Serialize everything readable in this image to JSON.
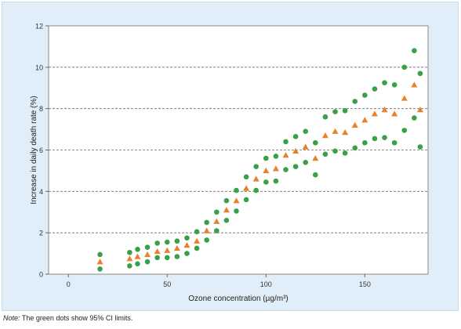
{
  "chart_data": {
    "type": "scatter",
    "title": "",
    "xlabel": "Ozone concentration (µg/m³)",
    "ylabel": "Increase in daily death rate (%)",
    "xlim": [
      -10,
      182
    ],
    "ylim": [
      0,
      12
    ],
    "xticks": [
      0,
      50,
      100,
      150
    ],
    "yticks": [
      0,
      2,
      4,
      6,
      8,
      10,
      12
    ],
    "grid": "horizontal dashed lines at y = 2, 4, 6, 8, 10",
    "series": [
      {
        "marker": "triangle",
        "color": "#e8822a",
        "points": [
          [
            16,
            0.6
          ],
          [
            31,
            0.75
          ],
          [
            35,
            0.85
          ],
          [
            40,
            0.95
          ],
          [
            45,
            1.1
          ],
          [
            50,
            1.15
          ],
          [
            55,
            1.25
          ],
          [
            60,
            1.4
          ],
          [
            65,
            1.6
          ],
          [
            70,
            2.1
          ],
          [
            75,
            2.55
          ],
          [
            80,
            3.1
          ],
          [
            85,
            3.55
          ],
          [
            90,
            4.15
          ],
          [
            95,
            4.6
          ],
          [
            100,
            5.0
          ],
          [
            105,
            5.1
          ],
          [
            110,
            5.75
          ],
          [
            115,
            5.95
          ],
          [
            120,
            6.15
          ],
          [
            125,
            5.6
          ],
          [
            130,
            6.7
          ],
          [
            135,
            6.9
          ],
          [
            140,
            6.85
          ],
          [
            145,
            7.2
          ],
          [
            150,
            7.45
          ],
          [
            155,
            7.75
          ],
          [
            160,
            7.95
          ],
          [
            165,
            7.75
          ],
          [
            170,
            8.5
          ],
          [
            175,
            9.15
          ],
          [
            178,
            7.95
          ]
        ]
      },
      {
        "marker": "circle",
        "color": "#3aa048",
        "points": [
          [
            16,
            0.95
          ],
          [
            31,
            1.05
          ],
          [
            35,
            1.2
          ],
          [
            40,
            1.3
          ],
          [
            45,
            1.5
          ],
          [
            50,
            1.55
          ],
          [
            55,
            1.6
          ],
          [
            60,
            1.75
          ],
          [
            65,
            2.05
          ],
          [
            70,
            2.5
          ],
          [
            75,
            3.0
          ],
          [
            80,
            3.55
          ],
          [
            85,
            4.05
          ],
          [
            90,
            4.7
          ],
          [
            95,
            5.2
          ],
          [
            100,
            5.6
          ],
          [
            105,
            5.7
          ],
          [
            110,
            6.4
          ],
          [
            115,
            6.65
          ],
          [
            120,
            6.9
          ],
          [
            125,
            6.35
          ],
          [
            130,
            7.6
          ],
          [
            135,
            7.85
          ],
          [
            140,
            7.9
          ],
          [
            145,
            8.35
          ],
          [
            150,
            8.65
          ],
          [
            155,
            8.95
          ],
          [
            160,
            9.25
          ],
          [
            165,
            9.15
          ],
          [
            170,
            10.0
          ],
          [
            175,
            10.8
          ],
          [
            178,
            9.7
          ]
        ]
      },
      {
        "marker": "circle",
        "color": "#3aa048",
        "points": [
          [
            16,
            0.25
          ],
          [
            31,
            0.4
          ],
          [
            35,
            0.5
          ],
          [
            40,
            0.6
          ],
          [
            45,
            0.8
          ],
          [
            50,
            0.8
          ],
          [
            55,
            0.85
          ],
          [
            60,
            1.0
          ],
          [
            65,
            1.25
          ],
          [
            70,
            1.65
          ],
          [
            75,
            2.1
          ],
          [
            80,
            2.6
          ],
          [
            85,
            3.05
          ],
          [
            90,
            3.6
          ],
          [
            95,
            4.05
          ],
          [
            100,
            4.45
          ],
          [
            105,
            4.5
          ],
          [
            110,
            5.05
          ],
          [
            115,
            5.2
          ],
          [
            120,
            5.4
          ],
          [
            125,
            4.8
          ],
          [
            130,
            5.8
          ],
          [
            135,
            5.95
          ],
          [
            140,
            5.85
          ],
          [
            145,
            6.1
          ],
          [
            150,
            6.35
          ],
          [
            155,
            6.55
          ],
          [
            160,
            6.6
          ],
          [
            165,
            6.35
          ],
          [
            170,
            6.95
          ],
          [
            175,
            7.55
          ],
          [
            178,
            6.15
          ]
        ]
      }
    ]
  },
  "note": {
    "label": "Note:",
    "text": " The green dots show 95% CI limits."
  }
}
